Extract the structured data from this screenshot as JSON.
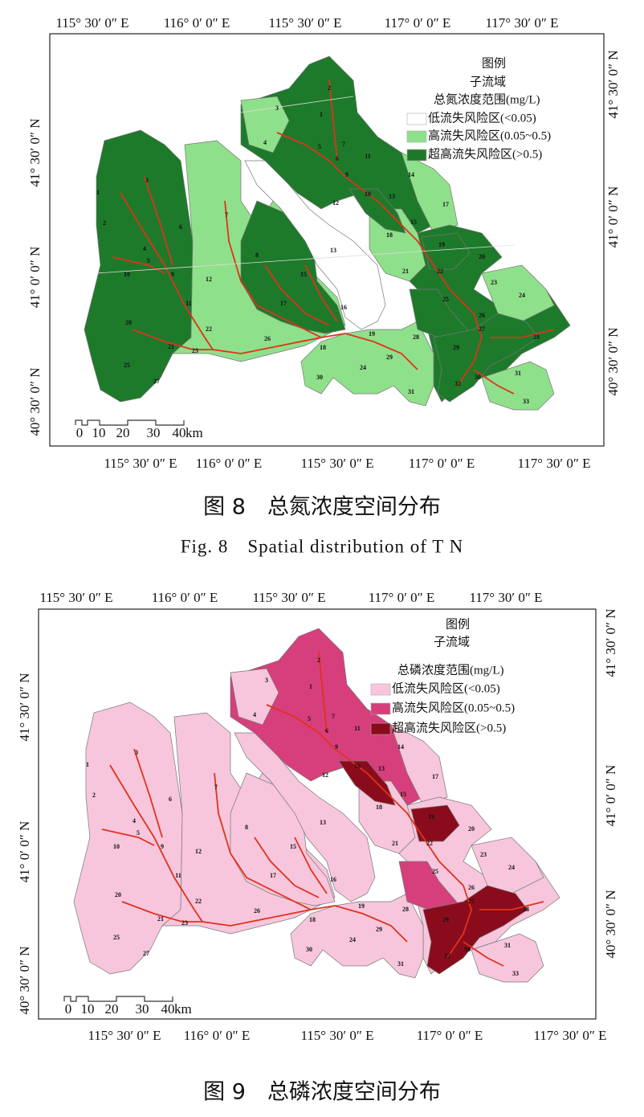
{
  "figures": [
    {
      "top_labels": [
        "115° 30′ 0″ E",
        "116° 0′ 0″ E",
        "115° 30′ 0″ E",
        "117° 0′ 0″ E",
        "117° 30′ 0″ E"
      ],
      "bottom_labels": [
        "115° 30′ 0″ E",
        "116° 0′ 0″ E",
        "115° 30′ 0″ E",
        "117° 0′ 0″ E",
        "117° 30′ 0″ E"
      ],
      "left_labels": [
        "41° 30′ 0″ N",
        "41° 0′ 0″ N",
        "40° 30′ 0″ N"
      ],
      "right_labels": [
        "41° 30′ 0″ N",
        "41° 0′ 0″ N",
        "40° 30′ 0″ N"
      ],
      "legend": {
        "title": "图例",
        "subtitle": "子流域",
        "heading": "总氮浓度范围(mg/L)",
        "items": [
          {
            "label": "低流失风险区(<0.05)",
            "color": "#ffffff"
          },
          {
            "label": "高流失风险区(0.05~0.5)",
            "color": "#8fe08a"
          },
          {
            "label": "超高流失风险区(>0.5)",
            "color": "#1d7a2a"
          }
        ]
      },
      "scale": {
        "ticks": [
          "0",
          "10",
          "20",
          "30",
          "40"
        ],
        "unit": "km"
      },
      "subbasin_labels": [
        "1",
        "2",
        "3",
        "4",
        "5",
        "6",
        "7",
        "8",
        "9",
        "10",
        "11",
        "12",
        "13",
        "15",
        "16",
        "17",
        "18",
        "19",
        "20",
        "21",
        "22",
        "23",
        "24",
        "25",
        "26",
        "27",
        "28",
        "29",
        "30",
        "31",
        "1",
        "2",
        "3",
        "4",
        "5",
        "6",
        "7",
        "9",
        "10",
        "11",
        "12",
        "13",
        "14",
        "15",
        "17",
        "18",
        "19",
        "20",
        "21",
        "22",
        "23",
        "24",
        "25",
        "26",
        "27",
        "28",
        "29",
        "30",
        "31",
        "32",
        "33"
      ],
      "caption_cn": "图 8　总氮浓度空间分布",
      "caption_en": "Fig. 8　Spatial distribution of T N"
    },
    {
      "top_labels": [
        "115° 30′ 0″ E",
        "116° 0′ 0″ E",
        "115° 30′ 0″ E",
        "117° 0′ 0″ E",
        "117° 30′ 0″ E"
      ],
      "bottom_labels": [
        "115° 30′ 0″ E",
        "116° 0′ 0″ E",
        "115° 30′ 0″ E",
        "117° 0′ 0″ E",
        "117° 30′ 0″ E"
      ],
      "left_labels": [
        "41° 30′ 0″ N",
        "41° 0′ 0″ N",
        "40° 30′ 0″ N"
      ],
      "right_labels": [
        "41° 30′ 0″ N",
        "41° 0′ 0″ N",
        "40° 30′ 0″ N"
      ],
      "legend": {
        "title": "图例",
        "subtitle": "子流域",
        "heading": "总磷浓度范围(mg/L)",
        "items": [
          {
            "label": "低流失风险区(<0.05)",
            "color": "#f7c6dc"
          },
          {
            "label": "高流失风险区(0.05~0.5)",
            "color": "#d63f7c"
          },
          {
            "label": "超高流失风险区(>0.5)",
            "color": "#8a0c1c"
          }
        ]
      },
      "scale": {
        "ticks": [
          "0",
          "10",
          "20",
          "30",
          "40"
        ],
        "unit": "km"
      },
      "subbasin_labels": [
        "1",
        "2",
        "3",
        "4",
        "5",
        "6",
        "7",
        "8",
        "9",
        "10",
        "11",
        "12",
        "13",
        "15",
        "16",
        "17",
        "18",
        "19",
        "20",
        "21",
        "22",
        "23",
        "24",
        "25",
        "26",
        "27",
        "28",
        "29",
        "30",
        "31",
        "1",
        "2",
        "3",
        "4",
        "5",
        "6",
        "7",
        "9",
        "10",
        "11",
        "12",
        "13",
        "14",
        "15",
        "17",
        "18",
        "19",
        "20",
        "21",
        "22",
        "23",
        "24",
        "25",
        "26",
        "27",
        "28",
        "29",
        "30",
        "31",
        "32",
        "33"
      ],
      "caption_cn": "图 9　总磷浓度空间分布"
    }
  ]
}
